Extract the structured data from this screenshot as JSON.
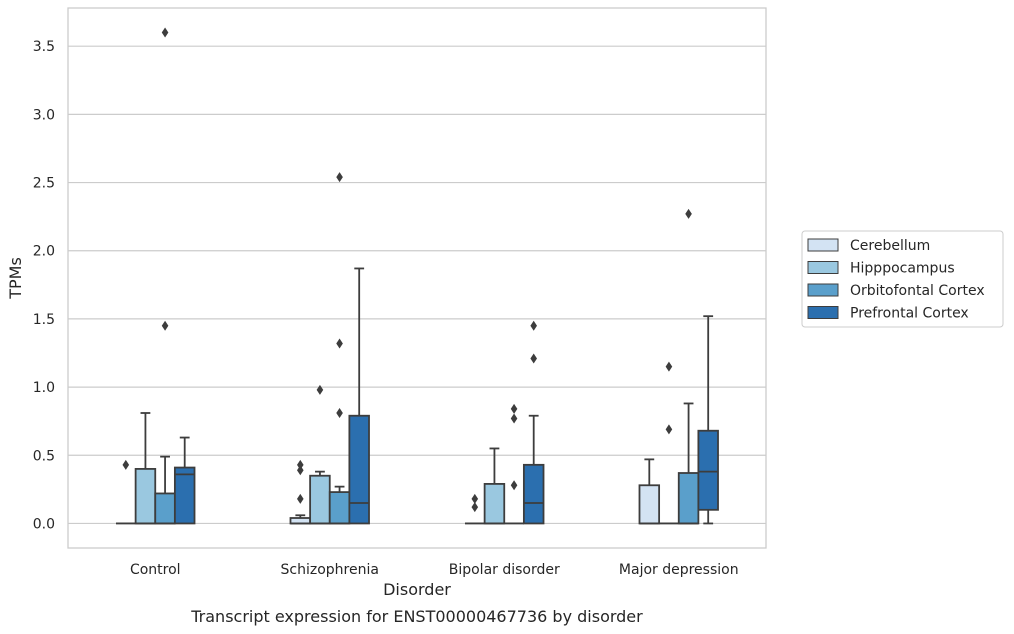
{
  "chart_data": {
    "type": "boxplot",
    "title": "",
    "caption": "Transcript expression for ENST00000467736 by disorder",
    "xlabel": "Disorder",
    "ylabel": "TPMs",
    "ylim": [
      -0.18,
      3.78
    ],
    "yticks": [
      "0.0",
      "0.5",
      "1.0",
      "1.5",
      "2.0",
      "2.5",
      "3.0",
      "3.5"
    ],
    "ytick_values": [
      0.0,
      0.5,
      1.0,
      1.5,
      2.0,
      2.5,
      3.0,
      3.5
    ],
    "grid": "horizontal",
    "legend_position": "right",
    "categories": [
      "Control",
      "Schizophrenia",
      "Bipolar disorder",
      "Major depression"
    ],
    "series": [
      {
        "name": "Cerebellum",
        "color": "#d3e3f3",
        "boxes": [
          {
            "q1": 0.0,
            "median": 0.0,
            "q3": 0.0,
            "whislo": 0.0,
            "whishi": 0.0,
            "fliers": [
              0.43
            ]
          },
          {
            "q1": 0.0,
            "median": 0.0,
            "q3": 0.04,
            "whislo": 0.0,
            "whishi": 0.06,
            "fliers": [
              0.18,
              0.39,
              0.43
            ]
          },
          {
            "q1": 0.0,
            "median": 0.0,
            "q3": 0.0,
            "whislo": 0.0,
            "whishi": 0.0,
            "fliers": [
              0.12,
              0.18
            ]
          },
          {
            "q1": 0.0,
            "median": 0.0,
            "q3": 0.28,
            "whislo": 0.0,
            "whishi": 0.47,
            "fliers": []
          }
        ]
      },
      {
        "name": "Hipppocampus",
        "color": "#9ac8e0",
        "boxes": [
          {
            "q1": 0.0,
            "median": 0.0,
            "q3": 0.4,
            "whislo": 0.0,
            "whishi": 0.81,
            "fliers": []
          },
          {
            "q1": 0.0,
            "median": 0.0,
            "q3": 0.35,
            "whislo": 0.0,
            "whishi": 0.38,
            "fliers": [
              0.98
            ]
          },
          {
            "q1": 0.0,
            "median": 0.0,
            "q3": 0.29,
            "whislo": 0.0,
            "whishi": 0.55,
            "fliers": []
          },
          {
            "q1": 0.0,
            "median": 0.0,
            "q3": 0.0,
            "whislo": 0.0,
            "whishi": 0.0,
            "fliers": [
              0.69,
              1.15
            ]
          }
        ]
      },
      {
        "name": "Orbitofontal Cortex",
        "color": "#5a9fcb",
        "boxes": [
          {
            "q1": 0.0,
            "median": 0.0,
            "q3": 0.22,
            "whislo": 0.0,
            "whishi": 0.49,
            "fliers": [
              1.45,
              3.6
            ]
          },
          {
            "q1": 0.0,
            "median": 0.0,
            "q3": 0.23,
            "whislo": 0.0,
            "whishi": 0.27,
            "fliers": [
              0.81,
              1.32,
              2.54
            ]
          },
          {
            "q1": 0.0,
            "median": 0.0,
            "q3": 0.0,
            "whislo": 0.0,
            "whishi": 0.0,
            "fliers": [
              0.28,
              0.77,
              0.84
            ]
          },
          {
            "q1": 0.0,
            "median": 0.0,
            "q3": 0.37,
            "whislo": 0.0,
            "whishi": 0.88,
            "fliers": [
              2.27
            ]
          }
        ]
      },
      {
        "name": "Prefrontal Cortex",
        "color": "#2b6faf",
        "boxes": [
          {
            "q1": 0.0,
            "median": 0.36,
            "q3": 0.41,
            "whislo": 0.0,
            "whishi": 0.63,
            "fliers": []
          },
          {
            "q1": 0.0,
            "median": 0.15,
            "q3": 0.79,
            "whislo": 0.0,
            "whishi": 1.87,
            "fliers": []
          },
          {
            "q1": 0.0,
            "median": 0.15,
            "q3": 0.43,
            "whislo": 0.0,
            "whishi": 0.79,
            "fliers": [
              1.21,
              1.45
            ]
          },
          {
            "q1": 0.1,
            "median": 0.38,
            "q3": 0.68,
            "whislo": 0.0,
            "whishi": 1.52,
            "fliers": []
          }
        ]
      }
    ]
  }
}
